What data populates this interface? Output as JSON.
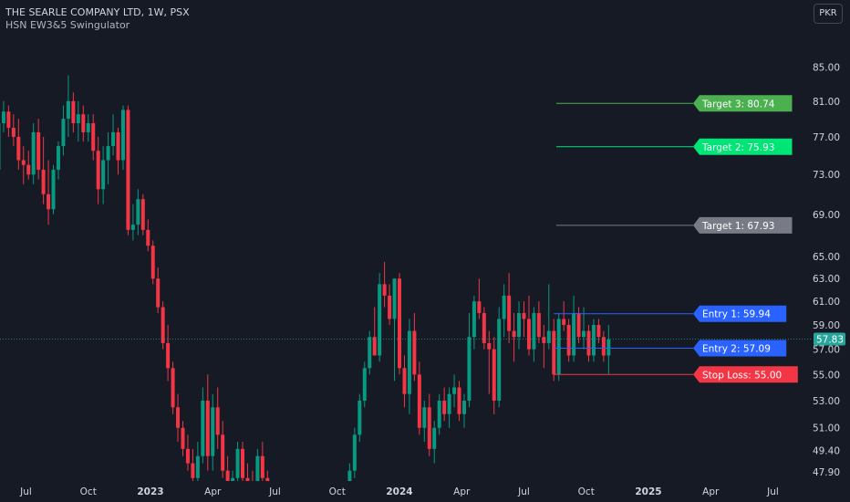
{
  "header": {
    "title": "THE SEARLE COMPANY LTD, 1W, PSX",
    "indicator": "HSN EW3&5 Swingulator",
    "currency": "PKR"
  },
  "colors": {
    "background": "#161a25",
    "up": "#089981",
    "down": "#f23645",
    "axis_text": "#d1d4dc",
    "target3": "#4caf50",
    "target2": "#00e676",
    "target1": "#787b86",
    "entry": "#2962ff",
    "stop_loss": "#f23645",
    "last_price": "#26a69a"
  },
  "chart_data": {
    "type": "candlestick",
    "title": "THE SEARLE COMPANY LTD, 1W, PSX",
    "y_scale": "log",
    "ylim": [
      47.3,
      88.3
    ],
    "y_ticks": [
      "85.00",
      "81.00",
      "77.00",
      "73.00",
      "69.00",
      "65.00",
      "63.00",
      "61.00",
      "59.00",
      "57.00",
      "55.00",
      "53.00",
      "51.00",
      "49.40",
      "47.90"
    ],
    "x_ticks": [
      "Jul",
      "Oct",
      "2023",
      "Apr",
      "Jul",
      "Oct",
      "2024",
      "Apr",
      "Jul",
      "Oct",
      "2025",
      "Apr",
      "Jul"
    ],
    "last_price": 57.83,
    "last_price_label": "57.83",
    "candles": [
      [
        2022.37,
        79.0,
        80.0,
        71.5,
        73.5
      ],
      [
        2022.39,
        73.5,
        79.5,
        72.5,
        78.5
      ],
      [
        2022.41,
        78.5,
        81.0,
        77.5,
        79.8
      ],
      [
        2022.43,
        79.8,
        80.5,
        77.0,
        78.0
      ],
      [
        2022.45,
        78.0,
        79.5,
        76.0,
        77.0
      ],
      [
        2022.47,
        77.0,
        79.0,
        73.5,
        74.5
      ],
      [
        2022.49,
        74.5,
        76.0,
        72.0,
        74.0
      ],
      [
        2022.51,
        74.0,
        75.5,
        72.5,
        73.0
      ],
      [
        2022.53,
        73.0,
        78.5,
        72.0,
        77.5
      ],
      [
        2022.55,
        77.5,
        79.0,
        72.5,
        73.5
      ],
      [
        2022.57,
        73.5,
        77.0,
        70.0,
        71.0
      ],
      [
        2022.59,
        71.0,
        74.5,
        68.0,
        69.5
      ],
      [
        2022.61,
        69.5,
        74.0,
        69.0,
        73.5
      ],
      [
        2022.63,
        73.5,
        76.5,
        72.5,
        76.0
      ],
      [
        2022.65,
        76.0,
        80.5,
        75.0,
        79.0
      ],
      [
        2022.67,
        79.0,
        84.0,
        77.0,
        81.0
      ],
      [
        2022.69,
        81.0,
        82.0,
        77.5,
        78.5
      ],
      [
        2022.71,
        78.5,
        81.0,
        76.5,
        79.5
      ],
      [
        2022.73,
        79.5,
        80.5,
        76.5,
        77.5
      ],
      [
        2022.75,
        77.5,
        79.5,
        76.5,
        78.5
      ],
      [
        2022.77,
        78.5,
        79.5,
        74.5,
        75.5
      ],
      [
        2022.79,
        75.5,
        77.0,
        70.0,
        71.5
      ],
      [
        2022.81,
        71.5,
        76.0,
        70.0,
        74.5
      ],
      [
        2022.83,
        74.5,
        77.5,
        72.0,
        76.0
      ],
      [
        2022.85,
        76.0,
        79.5,
        75.0,
        77.5
      ],
      [
        2022.87,
        77.5,
        78.0,
        73.0,
        74.5
      ],
      [
        2022.89,
        74.5,
        80.5,
        73.5,
        80.0
      ],
      [
        2022.91,
        80.0,
        80.5,
        67.0,
        67.5
      ],
      [
        2022.93,
        67.5,
        70.0,
        66.5,
        68.0
      ],
      [
        2022.95,
        68.0,
        71.5,
        67.0,
        70.5
      ],
      [
        2022.97,
        70.5,
        71.0,
        67.0,
        67.5
      ],
      [
        2022.99,
        67.5,
        68.5,
        65.5,
        66.0
      ],
      [
        2023.01,
        66.0,
        66.5,
        62.5,
        63.0
      ],
      [
        2023.03,
        63.0,
        64.0,
        60.0,
        60.5
      ],
      [
        2023.05,
        60.5,
        61.0,
        57.0,
        57.5
      ],
      [
        2023.07,
        57.5,
        59.0,
        54.5,
        55.5
      ],
      [
        2023.09,
        55.5,
        56.0,
        52.0,
        52.5
      ],
      [
        2023.11,
        52.5,
        53.5,
        50.0,
        51.0
      ],
      [
        2023.13,
        51.0,
        51.5,
        49.0,
        49.5
      ],
      [
        2023.15,
        49.5,
        50.5,
        48.0,
        48.5
      ],
      [
        2023.17,
        48.5,
        49.5,
        47.0,
        47.5
      ],
      [
        2023.19,
        47.5,
        50.0,
        46.8,
        49.0
      ],
      [
        2023.21,
        49.0,
        54.0,
        48.5,
        53.0
      ],
      [
        2023.23,
        53.0,
        55.0,
        48.0,
        49.0
      ],
      [
        2023.25,
        49.0,
        53.5,
        48.0,
        52.5
      ],
      [
        2023.27,
        52.5,
        54.0,
        49.5,
        50.5
      ],
      [
        2023.29,
        50.5,
        51.5,
        47.5,
        48.0
      ],
      [
        2023.31,
        48.0,
        49.0,
        46.0,
        46.5
      ],
      [
        2023.33,
        46.5,
        48.0,
        45.5,
        47.5
      ],
      [
        2023.35,
        47.5,
        50.0,
        46.5,
        49.5
      ],
      [
        2023.37,
        49.5,
        50.0,
        47.0,
        47.5
      ],
      [
        2023.39,
        47.5,
        48.5,
        46.0,
        47.0
      ],
      [
        2023.41,
        47.0,
        48.0,
        45.5,
        46.0
      ],
      [
        2023.43,
        46.0,
        49.5,
        45.5,
        49.0
      ],
      [
        2023.45,
        49.0,
        50.0,
        46.5,
        47.5
      ],
      [
        2023.47,
        47.5,
        48.0,
        45.5,
        46.0
      ],
      [
        2023.8,
        46.0,
        48.5,
        45.5,
        48.0
      ],
      [
        2023.82,
        48.0,
        51.0,
        47.5,
        50.5
      ],
      [
        2023.84,
        50.5,
        53.5,
        50.0,
        53.0
      ],
      [
        2023.86,
        53.0,
        56.0,
        52.5,
        55.5
      ],
      [
        2023.88,
        55.5,
        58.5,
        55.0,
        58.0
      ],
      [
        2023.9,
        58.0,
        60.5,
        56.5,
        56.5
      ],
      [
        2023.92,
        56.5,
        63.5,
        56.0,
        62.5
      ],
      [
        2023.94,
        62.5,
        64.5,
        60.5,
        61.5
      ],
      [
        2023.96,
        61.5,
        62.5,
        59.0,
        59.5
      ],
      [
        2023.98,
        59.5,
        63.0,
        54.5,
        63.0
      ],
      [
        2024.0,
        63.0,
        63.5,
        55.0,
        55.5
      ],
      [
        2024.02,
        55.5,
        56.5,
        52.5,
        53.5
      ],
      [
        2024.04,
        53.5,
        59.5,
        52.0,
        58.5
      ],
      [
        2024.06,
        58.5,
        60.0,
        54.5,
        55.0
      ],
      [
        2024.08,
        55.0,
        56.0,
        50.5,
        51.0
      ],
      [
        2024.1,
        51.0,
        53.0,
        50.0,
        52.5
      ],
      [
        2024.12,
        52.5,
        53.5,
        49.0,
        49.5
      ],
      [
        2024.14,
        49.5,
        51.5,
        48.5,
        51.0
      ],
      [
        2024.16,
        51.0,
        53.5,
        50.5,
        53.0
      ],
      [
        2024.18,
        53.0,
        54.0,
        51.5,
        52.0
      ],
      [
        2024.2,
        52.0,
        54.0,
        51.0,
        53.5
      ],
      [
        2024.22,
        53.5,
        55.0,
        52.5,
        54.0
      ],
      [
        2024.24,
        54.0,
        54.5,
        51.5,
        52.0
      ],
      [
        2024.26,
        52.0,
        53.5,
        51.0,
        53.0
      ],
      [
        2024.28,
        53.0,
        60.0,
        52.5,
        58.0
      ],
      [
        2024.3,
        58.0,
        61.5,
        57.0,
        61.0
      ],
      [
        2024.32,
        61.0,
        63.0,
        59.5,
        60.0
      ],
      [
        2024.34,
        60.0,
        60.5,
        57.0,
        57.5
      ],
      [
        2024.36,
        57.5,
        58.5,
        53.5,
        57.0
      ],
      [
        2024.38,
        57.0,
        58.0,
        52.0,
        53.0
      ],
      [
        2024.4,
        53.0,
        60.5,
        52.5,
        59.5
      ],
      [
        2024.42,
        59.5,
        62.5,
        58.0,
        61.5
      ],
      [
        2024.44,
        61.5,
        63.5,
        57.5,
        58.5
      ],
      [
        2024.46,
        58.5,
        60.0,
        56.0,
        58.0
      ],
      [
        2024.48,
        58.0,
        61.0,
        57.0,
        60.0
      ],
      [
        2024.5,
        60.0,
        61.0,
        58.0,
        59.5
      ],
      [
        2024.52,
        59.5,
        61.5,
        56.5,
        57.0
      ],
      [
        2024.54,
        57.0,
        60.5,
        56.0,
        60.0
      ],
      [
        2024.56,
        60.0,
        61.0,
        57.5,
        58.0
      ],
      [
        2024.58,
        58.0,
        59.0,
        55.5,
        57.5
      ],
      [
        2024.6,
        57.5,
        62.5,
        57.0,
        58.5
      ],
      [
        2024.62,
        58.5,
        59.5,
        54.5,
        55.0
      ],
      [
        2024.64,
        55.0,
        60.0,
        54.5,
        59.5
      ],
      [
        2024.66,
        59.5,
        61.0,
        58.5,
        59.0
      ],
      [
        2024.68,
        59.0,
        59.5,
        56.0,
        56.5
      ],
      [
        2024.7,
        56.5,
        61.5,
        56.0,
        60.0
      ],
      [
        2024.72,
        60.0,
        60.5,
        57.5,
        58.0
      ],
      [
        2024.74,
        58.0,
        60.5,
        57.0,
        58.5
      ],
      [
        2024.76,
        58.5,
        59.0,
        56.0,
        56.5
      ],
      [
        2024.78,
        56.5,
        59.5,
        56.0,
        59.0
      ],
      [
        2024.8,
        59.0,
        59.5,
        57.5,
        58.0
      ],
      [
        2024.82,
        58.0,
        58.5,
        56.0,
        56.5
      ],
      [
        2024.84,
        56.5,
        59.0,
        55.0,
        57.8
      ]
    ]
  },
  "levels": [
    {
      "key": "target3",
      "text": "Target 3: 80.74",
      "value": 80.74,
      "start": 2024.63
    },
    {
      "key": "target2",
      "text": "Target 2: 75.93",
      "value": 75.93,
      "start": 2024.63
    },
    {
      "key": "target1",
      "text": "Target 1: 67.93",
      "value": 67.93,
      "start": 2024.63
    },
    {
      "key": "entry",
      "text": "Entry 1: 59.94",
      "value": 59.94,
      "start": 2024.62
    },
    {
      "key": "entry",
      "text": "Entry 2: 57.09",
      "value": 57.09,
      "start": 2024.62
    },
    {
      "key": "stop_loss",
      "text": "Stop Loss: 55.00",
      "value": 55.0,
      "start": 2024.62
    }
  ]
}
